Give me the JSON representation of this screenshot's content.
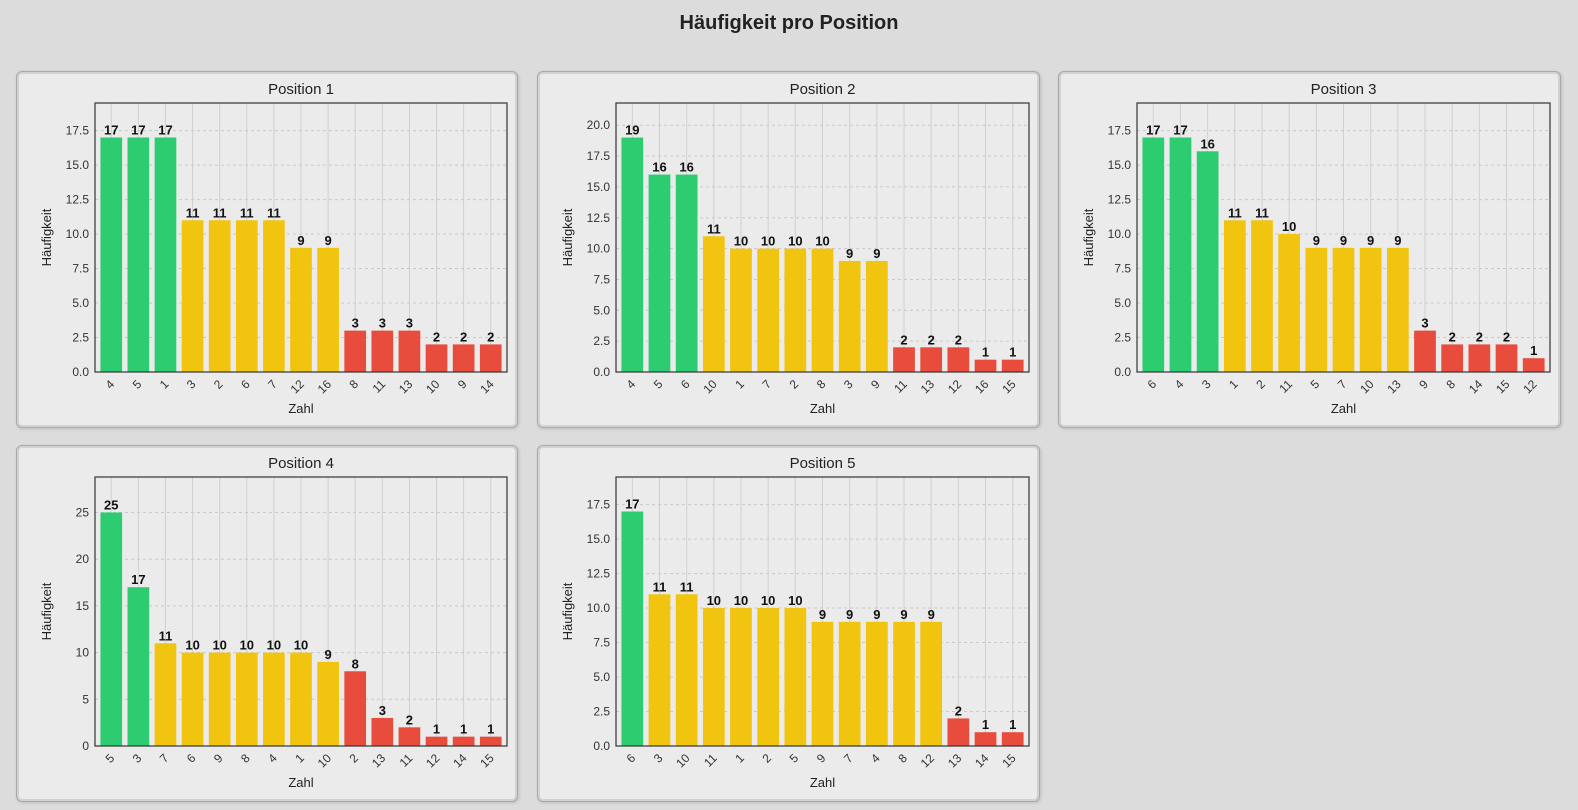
{
  "title": "Häufigkeit pro Position",
  "colors": {
    "high": "#2ecc71",
    "mid": "#f1c40f",
    "low": "#e74c3c"
  },
  "chart_data": [
    {
      "type": "bar",
      "title": "Position 1",
      "xlabel": "Zahl",
      "ylabel": "Häufigkeit",
      "categories": [
        "4",
        "5",
        "1",
        "3",
        "2",
        "6",
        "7",
        "12",
        "16",
        "8",
        "11",
        "13",
        "10",
        "9",
        "14"
      ],
      "values": [
        17,
        17,
        17,
        11,
        11,
        11,
        11,
        9,
        9,
        3,
        3,
        3,
        2,
        2,
        2
      ],
      "color_groups": [
        "high",
        "high",
        "high",
        "mid",
        "mid",
        "mid",
        "mid",
        "mid",
        "mid",
        "low",
        "low",
        "low",
        "low",
        "low",
        "low"
      ],
      "ylim": [
        0,
        19.5
      ],
      "yticks": [
        "0.0",
        "2.5",
        "5.0",
        "7.5",
        "10.0",
        "12.5",
        "15.0",
        "17.5"
      ],
      "grid": true
    },
    {
      "type": "bar",
      "title": "Position 2",
      "xlabel": "Zahl",
      "ylabel": "Häufigkeit",
      "categories": [
        "4",
        "5",
        "6",
        "10",
        "1",
        "7",
        "2",
        "8",
        "3",
        "9",
        "11",
        "13",
        "12",
        "16",
        "15"
      ],
      "values": [
        19,
        16,
        16,
        11,
        10,
        10,
        10,
        10,
        9,
        9,
        2,
        2,
        2,
        1,
        1
      ],
      "color_groups": [
        "high",
        "high",
        "high",
        "mid",
        "mid",
        "mid",
        "mid",
        "mid",
        "mid",
        "mid",
        "low",
        "low",
        "low",
        "low",
        "low"
      ],
      "ylim": [
        0,
        21.8
      ],
      "yticks": [
        "0.0",
        "2.5",
        "5.0",
        "7.5",
        "10.0",
        "12.5",
        "15.0",
        "17.5",
        "20.0"
      ],
      "grid": true
    },
    {
      "type": "bar",
      "title": "Position 3",
      "xlabel": "Zahl",
      "ylabel": "Häufigkeit",
      "categories": [
        "6",
        "4",
        "3",
        "1",
        "2",
        "11",
        "5",
        "7",
        "10",
        "13",
        "9",
        "8",
        "14",
        "15",
        "12"
      ],
      "values": [
        17,
        17,
        16,
        11,
        11,
        10,
        9,
        9,
        9,
        9,
        3,
        2,
        2,
        2,
        1
      ],
      "color_groups": [
        "high",
        "high",
        "high",
        "mid",
        "mid",
        "mid",
        "mid",
        "mid",
        "mid",
        "mid",
        "low",
        "low",
        "low",
        "low",
        "low"
      ],
      "ylim": [
        0,
        19.5
      ],
      "yticks": [
        "0.0",
        "2.5",
        "5.0",
        "7.5",
        "10.0",
        "12.5",
        "15.0",
        "17.5"
      ],
      "grid": true
    },
    {
      "type": "bar",
      "title": "Position 4",
      "xlabel": "Zahl",
      "ylabel": "Häufigkeit",
      "categories": [
        "5",
        "3",
        "7",
        "6",
        "9",
        "8",
        "4",
        "1",
        "10",
        "2",
        "13",
        "11",
        "12",
        "14",
        "15"
      ],
      "values": [
        25,
        17,
        11,
        10,
        10,
        10,
        10,
        10,
        9,
        8,
        3,
        2,
        1,
        1,
        1
      ],
      "color_groups": [
        "high",
        "high",
        "mid",
        "mid",
        "mid",
        "mid",
        "mid",
        "mid",
        "mid",
        "low",
        "low",
        "low",
        "low",
        "low",
        "low"
      ],
      "ylim": [
        0,
        28.8
      ],
      "yticks": [
        "0",
        "5",
        "10",
        "15",
        "20",
        "25"
      ],
      "grid": true
    },
    {
      "type": "bar",
      "title": "Position 5",
      "xlabel": "Zahl",
      "ylabel": "Häufigkeit",
      "categories": [
        "6",
        "3",
        "10",
        "11",
        "1",
        "2",
        "5",
        "9",
        "7",
        "4",
        "8",
        "12",
        "13",
        "14",
        "15"
      ],
      "values": [
        17,
        11,
        11,
        10,
        10,
        10,
        10,
        9,
        9,
        9,
        9,
        9,
        2,
        1,
        1
      ],
      "color_groups": [
        "high",
        "mid",
        "mid",
        "mid",
        "mid",
        "mid",
        "mid",
        "mid",
        "mid",
        "mid",
        "mid",
        "mid",
        "low",
        "low",
        "low"
      ],
      "ylim": [
        0,
        19.5
      ],
      "yticks": [
        "0.0",
        "2.5",
        "5.0",
        "7.5",
        "10.0",
        "12.5",
        "15.0",
        "17.5"
      ],
      "grid": true
    }
  ]
}
